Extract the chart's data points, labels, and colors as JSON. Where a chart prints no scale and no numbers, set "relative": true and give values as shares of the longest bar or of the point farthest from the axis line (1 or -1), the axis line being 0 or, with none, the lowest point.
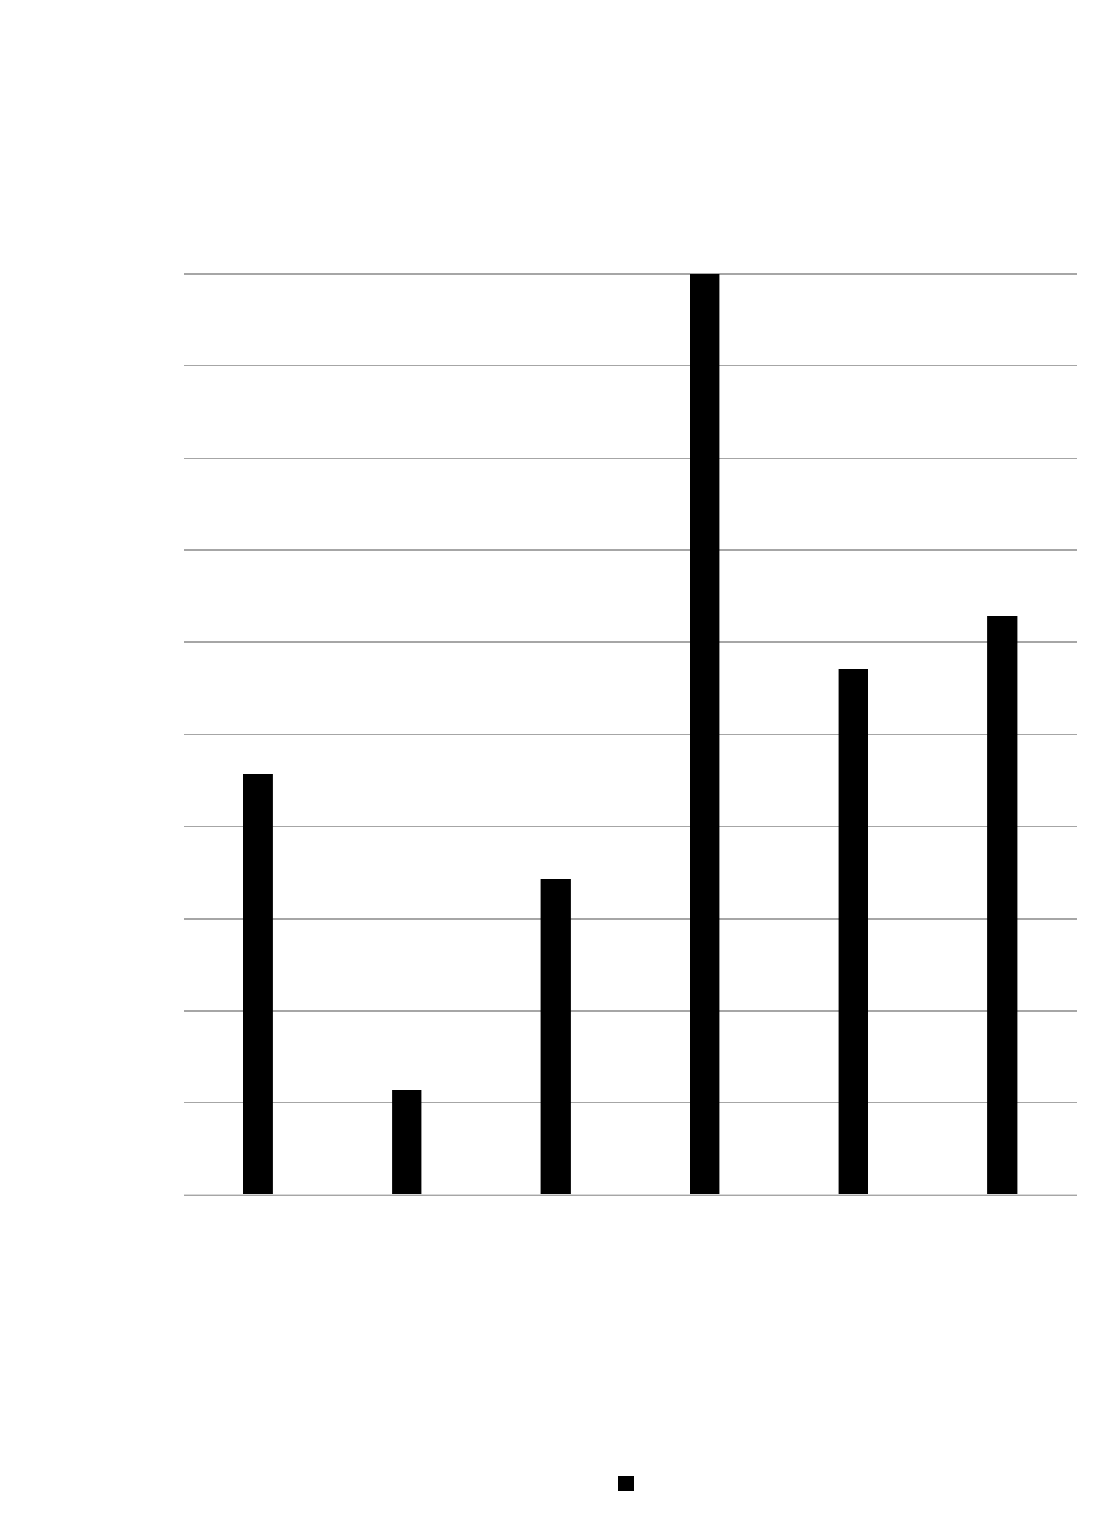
{
  "chart_data": {
    "type": "bar",
    "relative": true,
    "categories": [
      null,
      null,
      null,
      null,
      null,
      null
    ],
    "series": [
      {
        "color": "#000000",
        "values": [
          0.457,
          0.114,
          0.343,
          1,
          0.571,
          0.629
        ]
      }
    ],
    "grid": "y"
  }
}
